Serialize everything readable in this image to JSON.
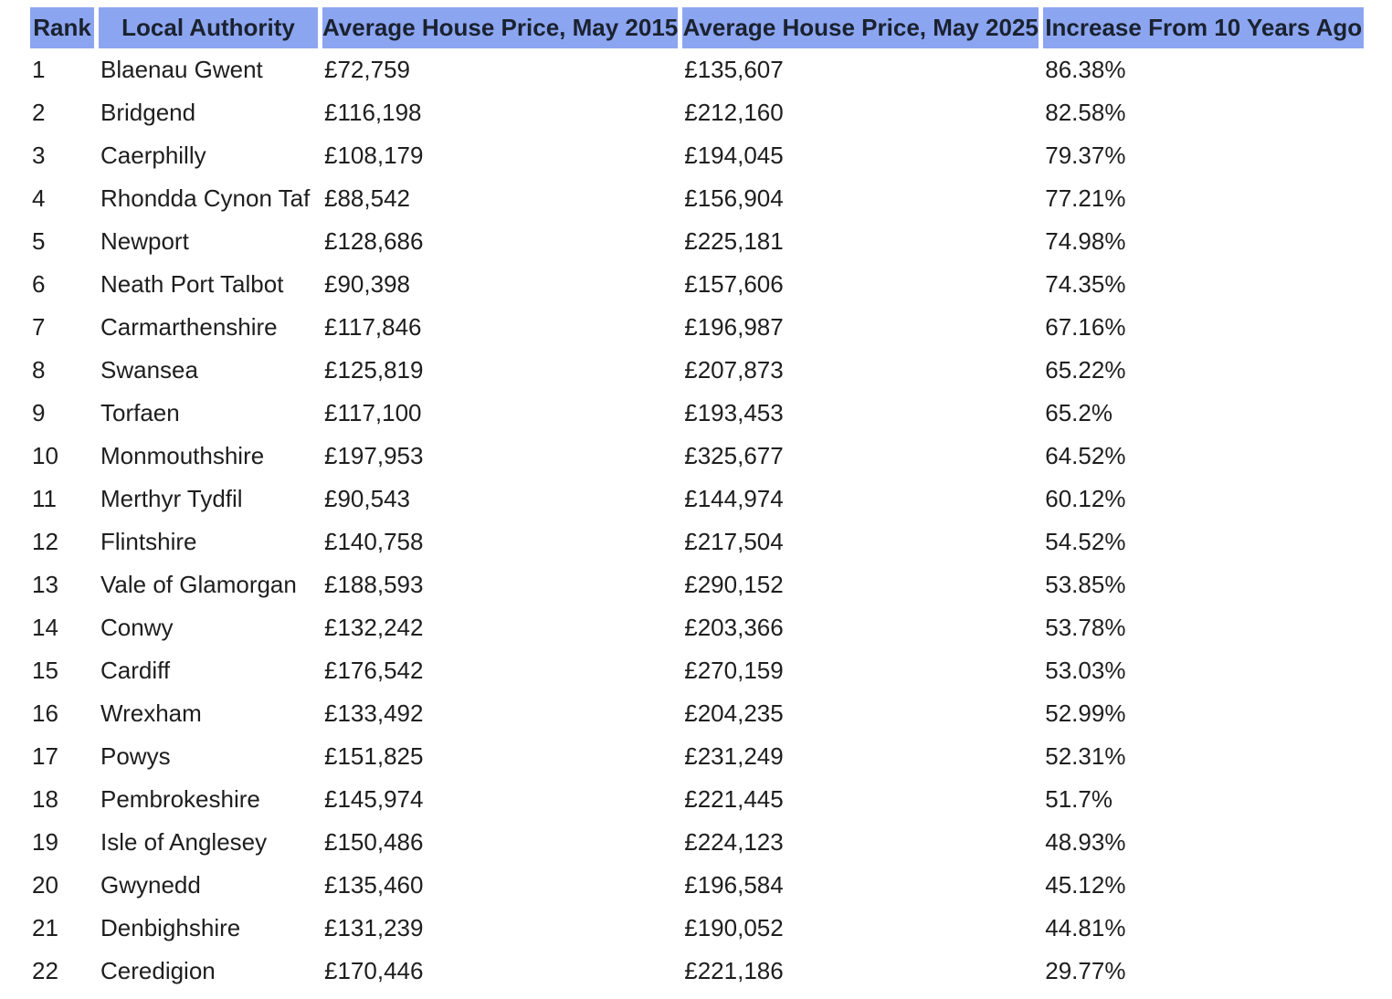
{
  "style": {
    "header_bg": "#8CA5F0",
    "header_text": "#1A2230",
    "body_text": "#1E1E1E",
    "background": "#FFFFFF"
  },
  "chart_data": {
    "type": "table",
    "columns": [
      "Rank",
      "Local Authority",
      "Average House Price, May 2015",
      "Average House Price, May 2025",
      "Increase From 10 Years Ago"
    ],
    "rows": [
      [
        "1",
        "Blaenau Gwent",
        "£72,759",
        "£135,607",
        "86.38%"
      ],
      [
        "2",
        "Bridgend",
        "£116,198",
        "£212,160",
        "82.58%"
      ],
      [
        "3",
        "Caerphilly",
        "£108,179",
        "£194,045",
        "79.37%"
      ],
      [
        "4",
        "Rhondda Cynon Taf",
        "£88,542",
        "£156,904",
        "77.21%"
      ],
      [
        "5",
        "Newport",
        "£128,686",
        "£225,181",
        "74.98%"
      ],
      [
        "6",
        "Neath Port Talbot",
        "£90,398",
        "£157,606",
        "74.35%"
      ],
      [
        "7",
        "Carmarthenshire",
        "£117,846",
        "£196,987",
        "67.16%"
      ],
      [
        "8",
        "Swansea",
        "£125,819",
        "£207,873",
        "65.22%"
      ],
      [
        "9",
        "Torfaen",
        "£117,100",
        "£193,453",
        "65.2%"
      ],
      [
        "10",
        "Monmouthshire",
        "£197,953",
        "£325,677",
        "64.52%"
      ],
      [
        "11",
        "Merthyr Tydfil",
        "£90,543",
        "£144,974",
        "60.12%"
      ],
      [
        "12",
        "Flintshire",
        "£140,758",
        "£217,504",
        "54.52%"
      ],
      [
        "13",
        "Vale of Glamorgan",
        "£188,593",
        "£290,152",
        "53.85%"
      ],
      [
        "14",
        "Conwy",
        "£132,242",
        "£203,366",
        "53.78%"
      ],
      [
        "15",
        "Cardiff",
        "£176,542",
        "£270,159",
        "53.03%"
      ],
      [
        "16",
        "Wrexham",
        "£133,492",
        "£204,235",
        "52.99%"
      ],
      [
        "17",
        "Powys",
        "£151,825",
        "£231,249",
        "52.31%"
      ],
      [
        "18",
        "Pembrokeshire",
        "£145,974",
        "£221,445",
        "51.7%"
      ],
      [
        "19",
        "Isle of Anglesey",
        "£150,486",
        "£224,123",
        "48.93%"
      ],
      [
        "20",
        "Gwynedd",
        "£135,460",
        "£196,584",
        "45.12%"
      ],
      [
        "21",
        "Denbighshire",
        "£131,239",
        "£190,052",
        "44.81%"
      ],
      [
        "22",
        "Ceredigion",
        "£170,446",
        "£221,186",
        "29.77%"
      ]
    ]
  }
}
